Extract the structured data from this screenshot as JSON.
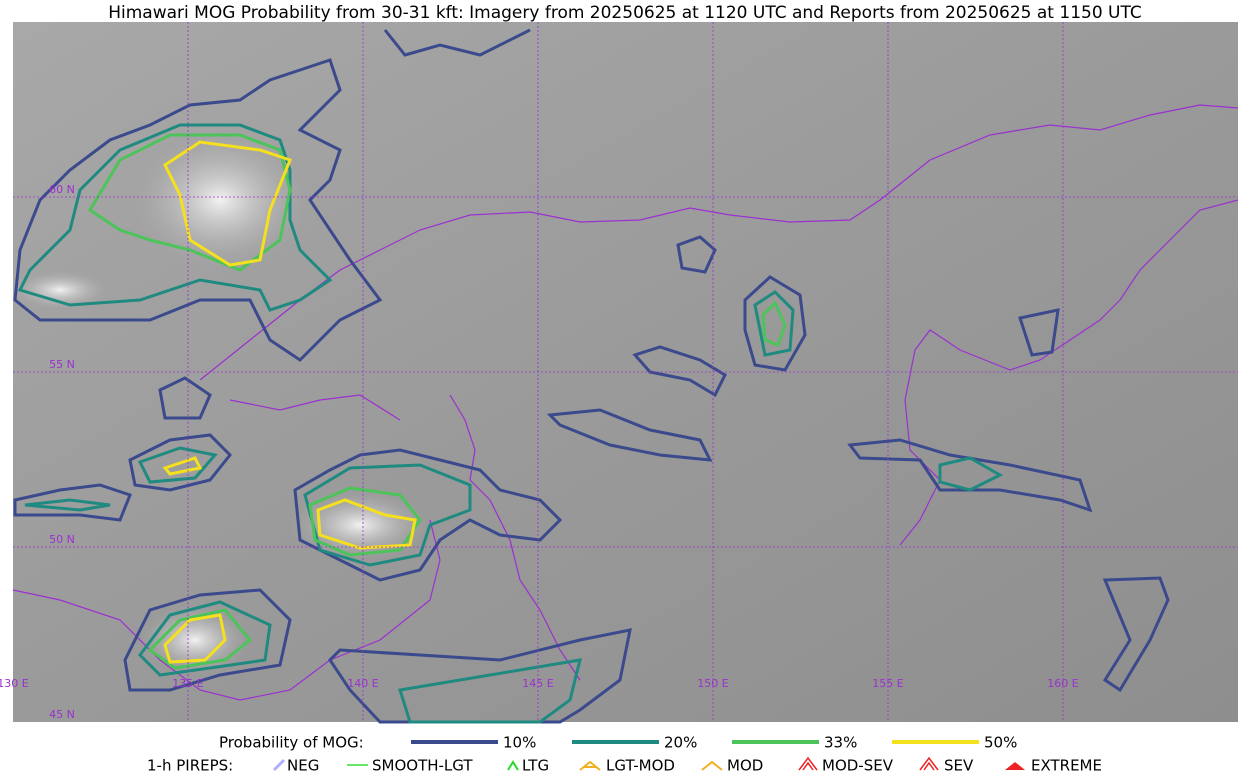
{
  "header": {
    "title": "Himawari MOG Probability from 30-31 kft: Imagery from 20250625 at 1120 UTC and Reports from 20250625 at 1150 UTC"
  },
  "map": {
    "latitude_labels": [
      "60 N",
      "55 N",
      "50 N",
      "45 N"
    ],
    "longitude_labels": [
      "130 E",
      "135 E",
      "140 E",
      "145 E",
      "150 E",
      "155 E",
      "160 E"
    ]
  },
  "legend": {
    "probability_title": "Probability of MOG:",
    "probability_items": [
      {
        "label": "10%",
        "color": "#3b4a8c"
      },
      {
        "label": "20%",
        "color": "#1f8a80"
      },
      {
        "label": "33%",
        "color": "#4cc45a"
      },
      {
        "label": "50%",
        "color": "#f5e01e"
      }
    ],
    "pireps_title": "1-h PIREPS:",
    "pireps_items": [
      "NEG",
      "SMOOTH-LGT",
      "LTG",
      "LGT-MOD",
      "MOD",
      "MOD-SEV",
      "SEV",
      "EXTREME"
    ]
  }
}
